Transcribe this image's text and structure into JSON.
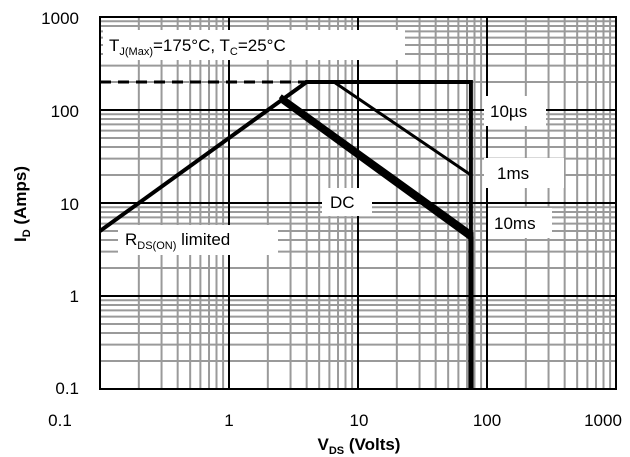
{
  "chart_data": {
    "type": "line",
    "x_scale": "log",
    "y_scale": "log",
    "xlim": [
      0.1,
      1000
    ],
    "ylim": [
      0.1,
      1000
    ],
    "grid": true,
    "x_ticks": [
      "0.1",
      "1",
      "10",
      "100",
      "1000"
    ],
    "y_ticks": [
      "0.1",
      "1",
      "10",
      "100",
      "1000"
    ],
    "xlabel": {
      "main": "V",
      "sub": "DS",
      "rest": " (Volts)"
    },
    "ylabel": {
      "main": "I",
      "sub": "D",
      "rest": " (Amps)"
    },
    "conditions": {
      "tj_main": "T",
      "tj_sub": "J(Max)",
      "tj_rest": "=175°C, T",
      "tc_sub": "C",
      "tc_rest": "=25°C"
    },
    "series": [
      {
        "name": "10µs",
        "label": "10µs",
        "points": [
          [
            3.9,
            200
          ],
          [
            75,
            200
          ],
          [
            75,
            0.1
          ]
        ]
      },
      {
        "name": "1ms",
        "label": "1ms",
        "points": [
          [
            6.5,
            200
          ],
          [
            75,
            20
          ],
          [
            75,
            0.1
          ]
        ]
      },
      {
        "name": "10ms",
        "label": "10ms",
        "points": [
          [
            2.5,
            140
          ],
          [
            75,
            4.7
          ],
          [
            75,
            0.1
          ]
        ]
      },
      {
        "name": "DC",
        "label": "DC",
        "points": [
          [
            2.6,
            125
          ],
          [
            75,
            4.2
          ],
          [
            75,
            0.1
          ]
        ]
      }
    ],
    "rds_limit": {
      "label_main": "R",
      "label_sub": "DS(ON)",
      "label_rest": " limited",
      "points": [
        [
          0.1,
          5
        ],
        [
          4.0,
          200
        ]
      ]
    },
    "current_limit": {
      "style": "dashed",
      "y": 200,
      "x_range": [
        0.1,
        3.9
      ]
    }
  }
}
